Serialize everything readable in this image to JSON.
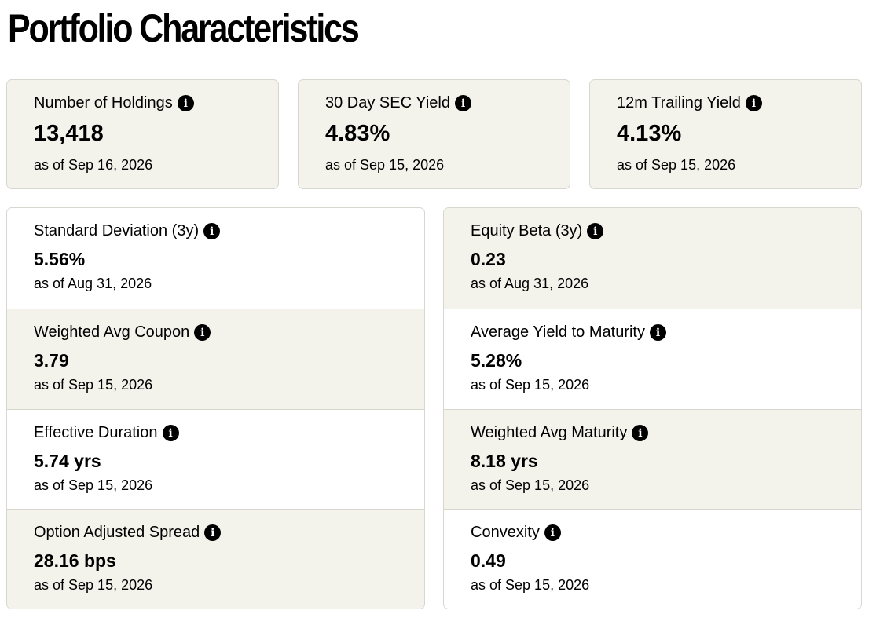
{
  "page_title": "Portfolio Characteristics",
  "info_icon_glyph": "i",
  "top_cards": [
    {
      "label": "Number of Holdings",
      "value": "13,418",
      "as_of": "as of Sep 16, 2026"
    },
    {
      "label": "30 Day SEC Yield",
      "value": "4.83%",
      "as_of": "as of Sep 15, 2026"
    },
    {
      "label": "12m Trailing Yield",
      "value": "4.13%",
      "as_of": "as of Sep 15, 2026"
    }
  ],
  "left_column": [
    {
      "label": "Standard Deviation (3y)",
      "value": "5.56%",
      "as_of": "as of Aug 31, 2026"
    },
    {
      "label": "Weighted Avg Coupon",
      "value": "3.79",
      "as_of": "as of Sep 15, 2026"
    },
    {
      "label": "Effective Duration",
      "value": "5.74 yrs",
      "as_of": "as of Sep 15, 2026"
    },
    {
      "label": "Option Adjusted Spread",
      "value": "28.16 bps",
      "as_of": "as of Sep 15, 2026"
    }
  ],
  "right_column": [
    {
      "label": "Equity Beta (3y)",
      "value": "0.23",
      "as_of": "as of Aug 31, 2026"
    },
    {
      "label": "Average Yield to Maturity",
      "value": "5.28%",
      "as_of": "as of Sep 15, 2026"
    },
    {
      "label": "Weighted Avg Maturity",
      "value": "8.18 yrs",
      "as_of": "as of Sep 15, 2026"
    },
    {
      "label": "Convexity",
      "value": "0.49",
      "as_of": "as of Sep 15, 2026"
    }
  ],
  "colors": {
    "card_background": "#f3f3eb",
    "border": "#d7d7cf",
    "text": "#000000"
  }
}
